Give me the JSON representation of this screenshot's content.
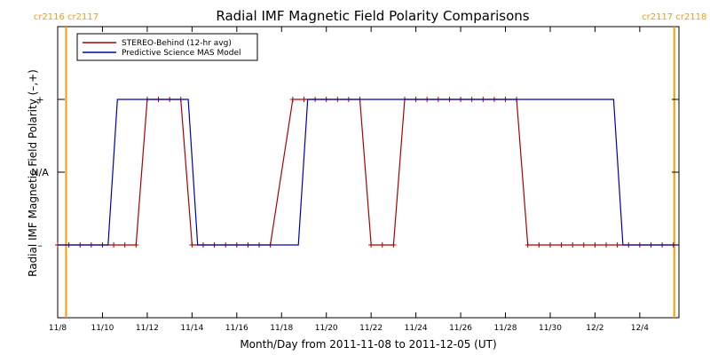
{
  "chart_data": {
    "type": "line",
    "title": "Radial IMF Magnetic Field Polarity Comparisons",
    "xlabel": "Month/Day from 2011-11-08 to 2011-12-05 (UT)",
    "ylabel": "Radial IMF Magnetic Field Polarity (–,+)",
    "xlim": [
      "2011-11-08",
      "2011-12-05T18:00"
    ],
    "x_ticks": [
      {
        "date": "2011-11-08",
        "label": "11/8"
      },
      {
        "date": "2011-11-10",
        "label": "11/10"
      },
      {
        "date": "2011-11-12",
        "label": "11/12"
      },
      {
        "date": "2011-11-14",
        "label": "11/14"
      },
      {
        "date": "2011-11-16",
        "label": "11/16"
      },
      {
        "date": "2011-11-18",
        "label": "11/18"
      },
      {
        "date": "2011-11-20",
        "label": "11/20"
      },
      {
        "date": "2011-11-22",
        "label": "11/22"
      },
      {
        "date": "2011-11-24",
        "label": "11/24"
      },
      {
        "date": "2011-11-26",
        "label": "11/26"
      },
      {
        "date": "2011-11-28",
        "label": "11/28"
      },
      {
        "date": "2011-11-30",
        "label": "11/30"
      },
      {
        "date": "2011-12-02",
        "label": "12/2"
      },
      {
        "date": "2011-12-04",
        "label": "12/4"
      }
    ],
    "y_ticks": [
      {
        "value": 1,
        "label": "+"
      },
      {
        "value": 0,
        "label": "N/A"
      },
      {
        "value": -1,
        "label": "–"
      }
    ],
    "ylim": [
      -2,
      2
    ],
    "carrington_markers": [
      {
        "date": "2011-11-08T09:00",
        "label": "cr2116 cr2117"
      },
      {
        "date": "2011-12-05T13:00",
        "label": "cr2117 cr2118"
      }
    ],
    "carrington_color": "#ff9900",
    "legend_position": "top-left",
    "series": [
      {
        "name": "STEREO-Behind (12-hr avg)",
        "color": "#aa0000",
        "markers": true,
        "points": [
          [
            "2011-11-08",
            -1
          ],
          [
            "2011-11-08T12:00",
            -1
          ],
          [
            "2011-11-09",
            -1
          ],
          [
            "2011-11-09T12:00",
            -1
          ],
          [
            "2011-11-10",
            -1
          ],
          [
            "2011-11-10T12:00",
            -1
          ],
          [
            "2011-11-11",
            -1
          ],
          [
            "2011-11-11T12:00",
            -1
          ],
          [
            "2011-11-12",
            1
          ],
          [
            "2011-11-12T12:00",
            1
          ],
          [
            "2011-11-13",
            1
          ],
          [
            "2011-11-13T12:00",
            1
          ],
          [
            "2011-11-14",
            -1
          ],
          [
            "2011-11-14T12:00",
            -1
          ],
          [
            "2011-11-15",
            -1
          ],
          [
            "2011-11-15T12:00",
            -1
          ],
          [
            "2011-11-16",
            -1
          ],
          [
            "2011-11-16T12:00",
            -1
          ],
          [
            "2011-11-17",
            -1
          ],
          [
            "2011-11-17T12:00",
            -1
          ],
          [
            "2011-11-18T12:00",
            1
          ],
          [
            "2011-11-19",
            1
          ],
          [
            "2011-11-19T12:00",
            1
          ],
          [
            "2011-11-20",
            1
          ],
          [
            "2011-11-20T12:00",
            1
          ],
          [
            "2011-11-21",
            1
          ],
          [
            "2011-11-21T12:00",
            1
          ],
          [
            "2011-11-22",
            -1
          ],
          [
            "2011-11-22T12:00",
            -1
          ],
          [
            "2011-11-23",
            -1
          ],
          [
            "2011-11-23T12:00",
            1
          ],
          [
            "2011-11-24",
            1
          ],
          [
            "2011-11-24T12:00",
            1
          ],
          [
            "2011-11-25",
            1
          ],
          [
            "2011-11-25T12:00",
            1
          ],
          [
            "2011-11-26",
            1
          ],
          [
            "2011-11-26T12:00",
            1
          ],
          [
            "2011-11-27",
            1
          ],
          [
            "2011-11-27T12:00",
            1
          ],
          [
            "2011-11-28",
            1
          ],
          [
            "2011-11-28T12:00",
            1
          ],
          [
            "2011-11-29",
            -1
          ],
          [
            "2011-11-29T12:00",
            -1
          ],
          [
            "2011-11-30",
            -1
          ],
          [
            "2011-11-30T12:00",
            -1
          ],
          [
            "2011-12-01",
            -1
          ],
          [
            "2011-12-01T12:00",
            -1
          ],
          [
            "2011-12-02",
            -1
          ],
          [
            "2011-12-02T12:00",
            -1
          ],
          [
            "2011-12-03",
            -1
          ],
          [
            "2011-12-03T12:00",
            -1
          ],
          [
            "2011-12-04",
            -1
          ],
          [
            "2011-12-04T12:00",
            -1
          ],
          [
            "2011-12-05",
            -1
          ],
          [
            "2011-12-05T12:00",
            -1
          ]
        ]
      },
      {
        "name": "Predictive Science MAS Model",
        "color": "#0000aa",
        "markers": false,
        "points": [
          [
            "2011-11-08",
            -1
          ],
          [
            "2011-11-10T06:00",
            -1
          ],
          [
            "2011-11-10T16:00",
            1
          ],
          [
            "2011-11-13T20:00",
            1
          ],
          [
            "2011-11-14T06:00",
            -1
          ],
          [
            "2011-11-18T18:00",
            -1
          ],
          [
            "2011-11-19T04:00",
            1
          ],
          [
            "2011-12-02T20:00",
            1
          ],
          [
            "2011-12-03T06:00",
            -1
          ],
          [
            "2011-12-05T18:00",
            -1
          ]
        ]
      }
    ]
  }
}
